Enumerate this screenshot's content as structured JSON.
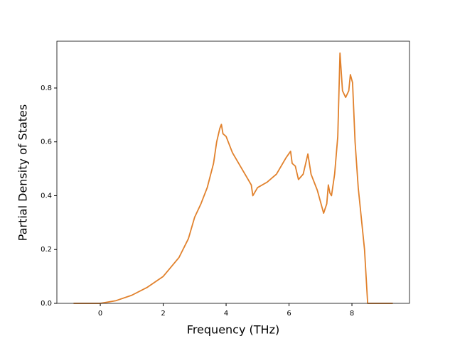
{
  "chart_data": {
    "type": "line",
    "xlabel": "Frequency (THz)",
    "ylabel": "Partial Density of States",
    "x": [
      -0.85,
      0,
      0.5,
      1,
      1.5,
      2,
      2.5,
      2.8,
      3.0,
      3.2,
      3.4,
      3.6,
      3.7,
      3.8,
      3.85,
      3.9,
      4.0,
      4.2,
      4.5,
      4.7,
      4.8,
      4.85,
      5.0,
      5.3,
      5.6,
      5.9,
      6.05,
      6.1,
      6.2,
      6.3,
      6.45,
      6.6,
      6.7,
      6.9,
      7.1,
      7.2,
      7.25,
      7.3,
      7.35,
      7.45,
      7.55,
      7.62,
      7.7,
      7.8,
      7.9,
      7.95,
      8.02,
      8.1,
      8.2,
      8.4,
      8.5,
      9.3
    ],
    "series": [
      {
        "color": "#e1812c",
        "values": [
          0,
          0,
          0.01,
          0.03,
          0.06,
          0.1,
          0.17,
          0.24,
          0.32,
          0.37,
          0.43,
          0.52,
          0.6,
          0.65,
          0.665,
          0.63,
          0.62,
          0.56,
          0.5,
          0.46,
          0.44,
          0.4,
          0.43,
          0.45,
          0.48,
          0.54,
          0.565,
          0.52,
          0.51,
          0.46,
          0.48,
          0.555,
          0.48,
          0.42,
          0.335,
          0.37,
          0.44,
          0.41,
          0.4,
          0.48,
          0.62,
          0.93,
          0.79,
          0.765,
          0.79,
          0.85,
          0.82,
          0.6,
          0.43,
          0.2,
          0,
          0
        ]
      }
    ],
    "xlim": [
      -1.38,
      9.83
    ],
    "ylim": [
      0,
      0.974
    ],
    "xticks": [
      0,
      2,
      4,
      6,
      8
    ],
    "yticks": [
      {
        "value": 0,
        "label": "0.0"
      },
      {
        "value": 0.2,
        "label": "0.2"
      },
      {
        "value": 0.4,
        "label": "0.4"
      },
      {
        "value": 0.6,
        "label": "0.6"
      },
      {
        "value": 0.8,
        "label": "0.8"
      }
    ]
  }
}
